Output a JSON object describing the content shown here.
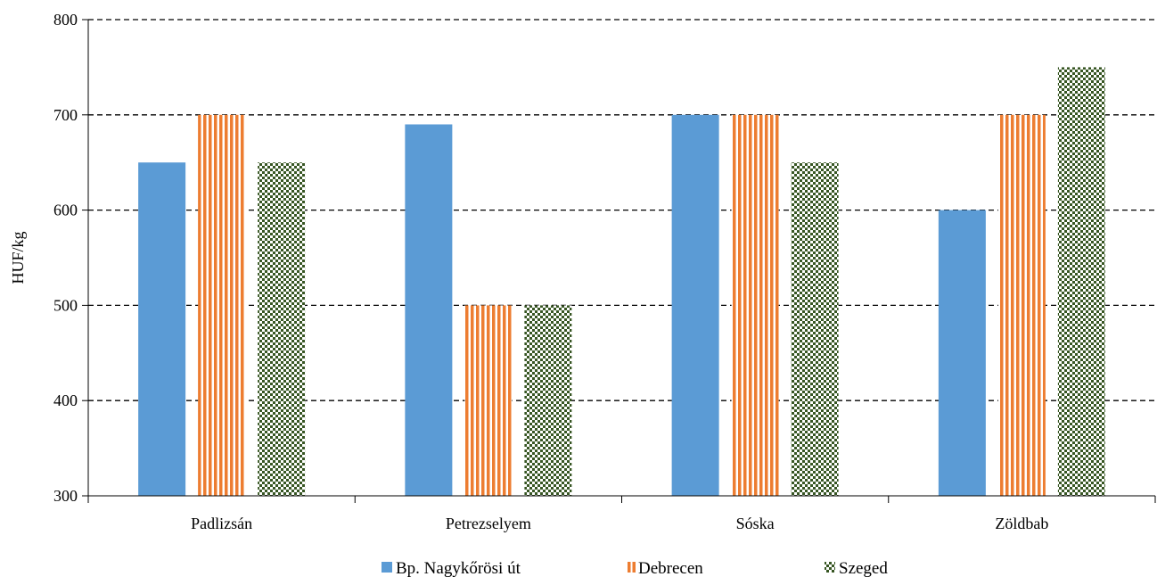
{
  "chart_data": {
    "type": "bar",
    "categories": [
      "Padlizsán",
      "Petrezselyem",
      "Sóska",
      "Zöldbab"
    ],
    "series": [
      {
        "name": "Bp. Nagykőrösi út",
        "values": [
          650,
          690,
          700,
          600
        ],
        "color": "#5b9bd5",
        "pattern": "solid"
      },
      {
        "name": "Debrecen",
        "values": [
          700,
          500,
          700,
          700
        ],
        "color": "#ed7d31",
        "pattern": "vertical-stripes"
      },
      {
        "name": "Szeged",
        "values": [
          650,
          500,
          650,
          750
        ],
        "color": "#375623",
        "pattern": "checker"
      }
    ],
    "title": "",
    "xlabel": "",
    "ylabel": "HUF/kg",
    "ylim": [
      300,
      800
    ],
    "yticks": [
      300,
      400,
      500,
      600,
      700,
      800
    ],
    "grid": "horizontal-dashed",
    "legend_position": "bottom"
  }
}
